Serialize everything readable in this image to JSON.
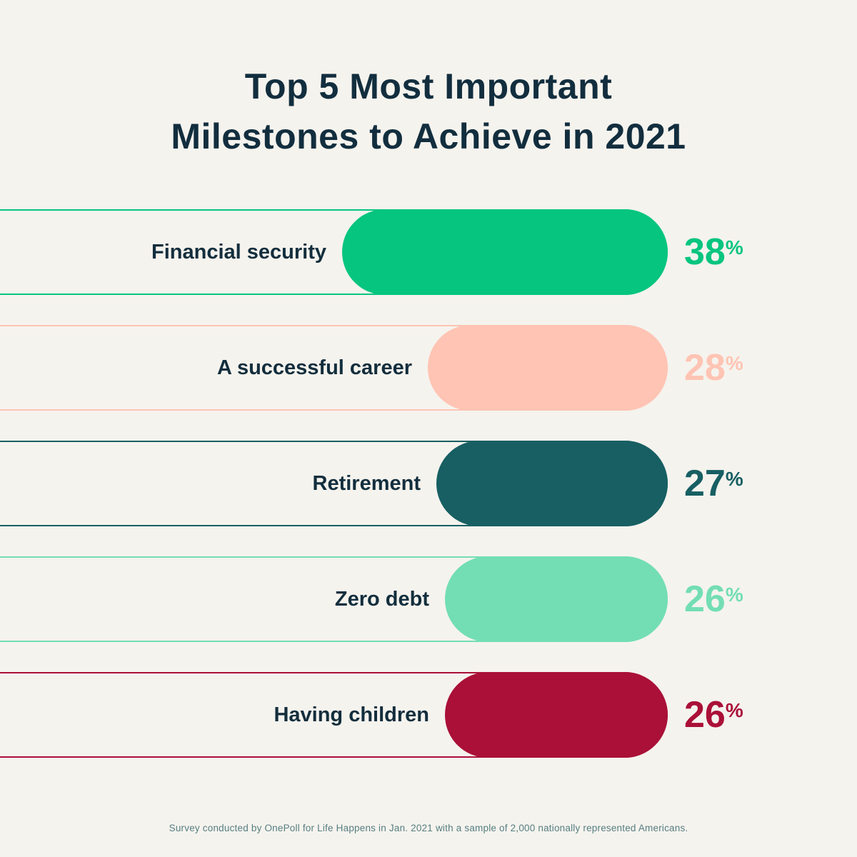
{
  "page": {
    "background": "#f5f3ee",
    "title_color": "#122e3e",
    "category_label_color": "#132e3d"
  },
  "header": {
    "title_line1": "Top 5 Most Important",
    "title_line2": "Milestones to Achieve in 2021"
  },
  "chart_data": {
    "type": "bar",
    "orientation": "horizontal",
    "title": "Top 5 Most Important Milestones to Achieve in 2021",
    "unit": "%",
    "categories": [
      "Financial security",
      "A successful career",
      "Retirement",
      "Zero debt",
      "Having children"
    ],
    "values": [
      38,
      28,
      27,
      26,
      26
    ],
    "xlim": [
      0,
      40
    ],
    "grid": false,
    "legend": false,
    "value_labels_position": "right-of-bar",
    "bars": [
      {
        "label": "Financial security",
        "value": 38,
        "display_value": "38",
        "color": "#05c57f"
      },
      {
        "label": "A successful career",
        "value": 28,
        "display_value": "28",
        "color": "#ffc4b3"
      },
      {
        "label": "Retirement",
        "value": 27,
        "display_value": "27",
        "color": "#175f63"
      },
      {
        "label": "Zero debt",
        "value": 26,
        "display_value": "26",
        "color": "#73deb3"
      },
      {
        "label": "Having children",
        "value": 26,
        "display_value": "26",
        "color": "#aa1038"
      }
    ]
  },
  "footer": {
    "note": "Survey conducted by OnePoll for Life Happens in Jan. 2021 with a sample of 2,000 nationally represented Americans.",
    "color": "#567e80"
  }
}
